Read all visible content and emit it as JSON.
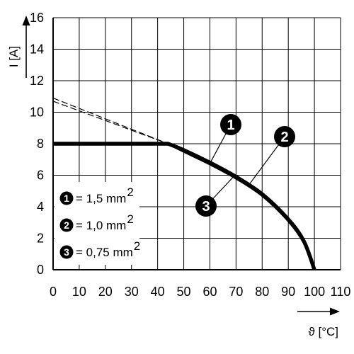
{
  "chart_data": {
    "type": "line",
    "xlabel": "ϑ [°C]",
    "ylabel": "I [A]",
    "xlim": [
      0,
      110
    ],
    "ylim": [
      0,
      16
    ],
    "xticks": [
      0,
      10,
      20,
      30,
      40,
      50,
      60,
      70,
      80,
      90,
      100,
      110
    ],
    "yticks": [
      0,
      2,
      4,
      6,
      8,
      10,
      12,
      14,
      16
    ],
    "grid": true,
    "legend_position": "bottom-left",
    "series": [
      {
        "name": "1,5 mm²",
        "marker": "1",
        "x": [
          0,
          44,
          50,
          60,
          70,
          80,
          90,
          96,
          100
        ],
        "y": [
          8,
          8,
          7.6,
          6.8,
          5.9,
          4.8,
          3.2,
          1.8,
          0
        ]
      },
      {
        "name": "1,0 mm²",
        "marker": "2",
        "x": [
          0,
          44,
          50,
          60,
          70,
          80,
          90,
          96,
          100
        ],
        "y": [
          8,
          8,
          7.55,
          6.75,
          5.85,
          4.75,
          3.15,
          1.75,
          0
        ]
      },
      {
        "name": "0,75 mm²",
        "marker": "3",
        "x": [
          0,
          44,
          50,
          60,
          70,
          80,
          90,
          96,
          100
        ],
        "y": [
          8,
          8,
          7.5,
          6.7,
          5.8,
          4.7,
          3.1,
          1.7,
          0
        ]
      }
    ],
    "dashed_extensions": [
      {
        "x": [
          0,
          44
        ],
        "y": [
          10.9,
          8.0
        ]
      },
      {
        "x": [
          0,
          44
        ],
        "y": [
          10.7,
          8.0
        ]
      }
    ],
    "legend": [
      {
        "marker": "1",
        "text": "= 1,5 mm",
        "sup": "2"
      },
      {
        "marker": "2",
        "text": "= 1,0 mm",
        "sup": "2"
      },
      {
        "marker": "3",
        "text": "= 0,75 mm",
        "sup": "2"
      }
    ],
    "callouts": [
      {
        "marker": "1",
        "x": 60,
        "y": 6.75
      },
      {
        "marker": "2",
        "x": 75,
        "y": 5.4
      },
      {
        "marker": "3",
        "x": 69,
        "y": 5.9
      }
    ],
    "colors": {
      "line": "#000000",
      "grid": "#000000",
      "badge": "#000000"
    }
  }
}
